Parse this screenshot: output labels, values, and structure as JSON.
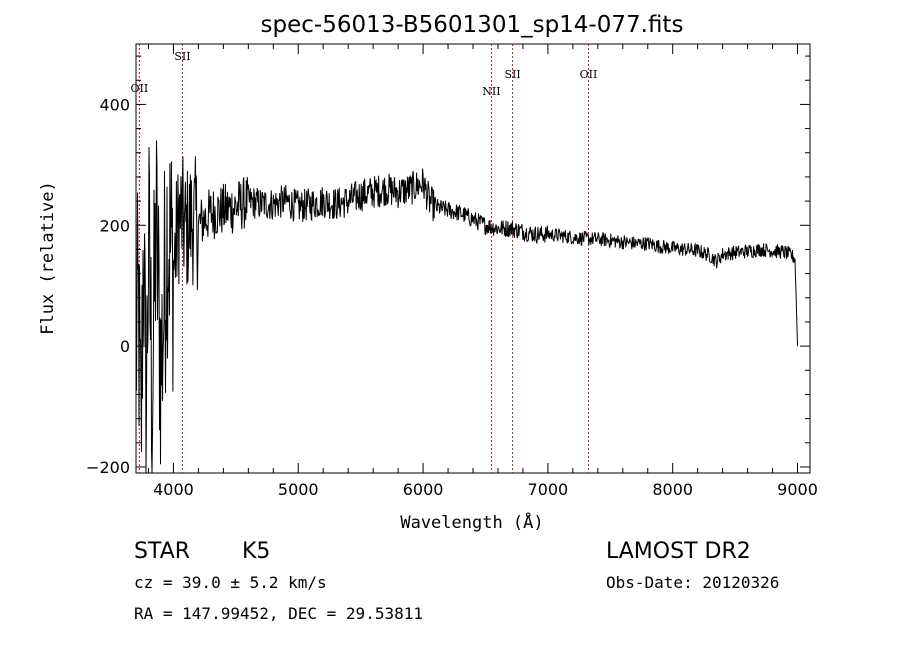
{
  "chart_data": {
    "type": "line",
    "title": "spec-56013-B5601301_sp14-077.fits",
    "xlabel": "Wavelength (Å)",
    "ylabel": "Flux (relative)",
    "xlim": [
      3700,
      9100
    ],
    "ylim": [
      -210,
      500
    ],
    "xticks": [
      4000,
      5000,
      6000,
      7000,
      8000,
      9000
    ],
    "xtick_labels": [
      "4000",
      "5000",
      "6000",
      "7000",
      "8000",
      "9000"
    ],
    "yticks": [
      -200,
      0,
      200,
      400
    ],
    "ytick_labels": [
      "−200",
      "0",
      "200",
      "400"
    ],
    "grid": false,
    "series": [
      {
        "color": "#000000",
        "x": [
          3700,
          3720,
          3740,
          3760,
          3780,
          3800,
          3830,
          3860,
          3900,
          3950,
          4000,
          4050,
          4100,
          4150,
          4200,
          4300,
          4400,
          4500,
          4600,
          4700,
          4800,
          4900,
          5000,
          5100,
          5200,
          5300,
          5400,
          5500,
          5600,
          5700,
          5800,
          5900,
          5950,
          6000,
          6050,
          6100,
          6200,
          6300,
          6400,
          6500,
          6600,
          6700,
          6800,
          6900,
          7000,
          7100,
          7200,
          7300,
          7400,
          7500,
          7600,
          7700,
          7800,
          7900,
          8000,
          8100,
          8200,
          8300,
          8350,
          8400,
          8500,
          8600,
          8700,
          8800,
          8900,
          8950,
          8980,
          9000
        ],
        "y": [
          0,
          60,
          -180,
          200,
          -150,
          180,
          -80,
          200,
          -40,
          200,
          130,
          220,
          190,
          210,
          200,
          220,
          225,
          230,
          240,
          235,
          235,
          240,
          230,
          235,
          240,
          235,
          240,
          250,
          255,
          260,
          255,
          260,
          265,
          270,
          240,
          230,
          225,
          220,
          210,
          200,
          195,
          195,
          190,
          185,
          185,
          183,
          180,
          178,
          177,
          175,
          172,
          170,
          170,
          165,
          162,
          160,
          158,
          150,
          140,
          152,
          155,
          157,
          160,
          158,
          155,
          150,
          145,
          0
        ]
      }
    ],
    "emission_lines": [
      {
        "label": "OII",
        "x": 3727
      },
      {
        "label": "SII",
        "x": 4072
      },
      {
        "label": "NII",
        "x": 6548
      },
      {
        "label": "SII",
        "x": 6717
      },
      {
        "label": "OII",
        "x": 7325
      }
    ],
    "line_color": "#b22222"
  },
  "info": {
    "object_class": "STAR",
    "subclass": "K5",
    "survey": "LAMOST DR2",
    "cz": "cz = 39.0 ± 5.2 km/s",
    "obs_date": "Obs-Date: 20120326",
    "coords": "RA = 147.99452, DEC =  29.53811"
  }
}
